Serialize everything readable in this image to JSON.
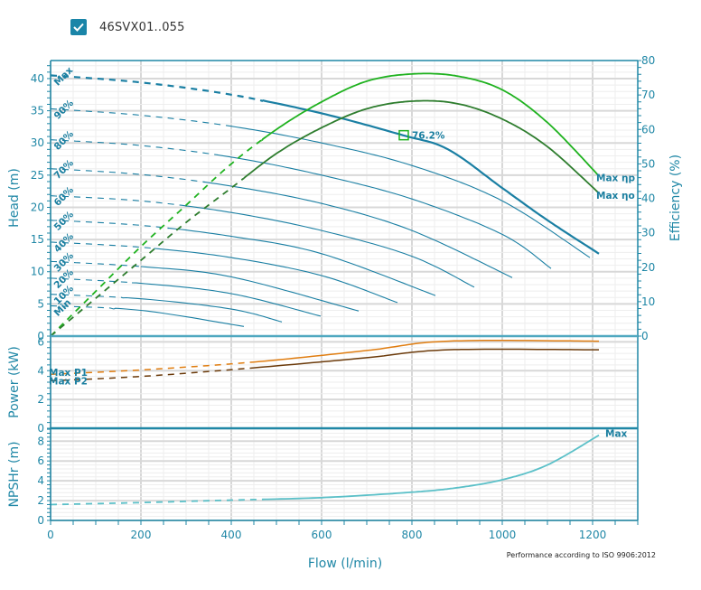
{
  "header": {
    "checkbox_checked": true,
    "model_name": "46SVX01..055"
  },
  "footnote": "Performance according to ISO 9906:2012",
  "colors": {
    "axis": "#1f87a6",
    "head": "#1a7fa3",
    "eta_p": "#1fb21f",
    "eta_o": "#2e7d2e",
    "p1": "#e07d10",
    "p2": "#6b3a0a",
    "npsh": "#5bc0c8",
    "grid_major": "#d8d8d8",
    "grid_minor": "#eeeeee"
  },
  "chart_data": [
    {
      "id": "head-efficiency",
      "type": "line",
      "xlabel": "Flow (l/min)",
      "ylabel": "Head (m)",
      "y2label": "Efficiency (%)",
      "xlim": [
        0,
        1300
      ],
      "ylim": [
        0,
        42.8
      ],
      "y2lim": [
        0,
        80
      ],
      "x_ticks": [
        0,
        200,
        400,
        600,
        800,
        1000,
        1200
      ],
      "y_ticks": [
        0,
        5,
        10,
        15,
        20,
        25,
        30,
        35,
        40
      ],
      "y2_ticks": [
        0,
        10,
        20,
        30,
        40,
        50,
        60,
        70,
        80
      ],
      "grid": true,
      "head_curves": [
        {
          "name": "Max",
          "label": "Max",
          "dashed_until": 470,
          "points": [
            [
              0,
              40.5
            ],
            [
              200,
              39.4
            ],
            [
              400,
              37.5
            ],
            [
              600,
              34.6
            ],
            [
              780,
              31.2
            ],
            [
              880,
              29.0
            ],
            [
              1000,
              23.0
            ],
            [
              1100,
              18.0
            ],
            [
              1214,
              12.8
            ]
          ],
          "bold": true
        },
        {
          "name": "90%",
          "label": "90%",
          "dashed_until": 400,
          "points": [
            [
              0,
              35.3
            ],
            [
              200,
              34.3
            ],
            [
              400,
              32.6
            ],
            [
              600,
              30.0
            ],
            [
              800,
              26.5
            ],
            [
              1000,
              21.0
            ],
            [
              1194,
              12.2
            ]
          ]
        },
        {
          "name": "80%",
          "label": "80%",
          "dashed_until": 370,
          "points": [
            [
              0,
              30.5
            ],
            [
              200,
              29.6
            ],
            [
              400,
              27.8
            ],
            [
              600,
              25.0
            ],
            [
              800,
              21.3
            ],
            [
              1000,
              15.8
            ],
            [
              1108,
              10.5
            ]
          ]
        },
        {
          "name": "70%",
          "label": "70%",
          "dashed_until": 340,
          "points": [
            [
              0,
              26.0
            ],
            [
              200,
              25.1
            ],
            [
              400,
              23.3
            ],
            [
              600,
              20.6
            ],
            [
              800,
              16.4
            ],
            [
              1022,
              9.1
            ]
          ]
        },
        {
          "name": "60%",
          "label": "60%",
          "dashed_until": 300,
          "points": [
            [
              0,
              21.8
            ],
            [
              200,
              21.0
            ],
            [
              400,
              19.2
            ],
            [
              600,
              16.4
            ],
            [
              800,
              12.4
            ],
            [
              938,
              7.6
            ]
          ]
        },
        {
          "name": "50%",
          "label": "50%",
          "dashed_until": 260,
          "points": [
            [
              0,
              18.0
            ],
            [
              200,
              17.2
            ],
            [
              400,
              15.5
            ],
            [
              600,
              12.8
            ],
            [
              852,
              6.3
            ]
          ]
        },
        {
          "name": "40%",
          "label": "40%",
          "dashed_until": 230,
          "points": [
            [
              0,
              14.6
            ],
            [
              200,
              13.8
            ],
            [
              400,
              12.2
            ],
            [
              600,
              9.4
            ],
            [
              768,
              5.2
            ]
          ]
        },
        {
          "name": "30%",
          "label": "30%",
          "dashed_until": 200,
          "points": [
            [
              0,
              11.6
            ],
            [
              200,
              10.8
            ],
            [
              400,
              9.2
            ],
            [
              682,
              3.9
            ]
          ]
        },
        {
          "name": "20%",
          "label": "20%",
          "dashed_until": 180,
          "points": [
            [
              0,
              9.0
            ],
            [
              200,
              8.2
            ],
            [
              400,
              6.6
            ],
            [
              598,
              3.1
            ]
          ]
        },
        {
          "name": "10%",
          "label": "10%",
          "dashed_until": 160,
          "points": [
            [
              0,
              6.5
            ],
            [
              200,
              5.8
            ],
            [
              400,
              4.2
            ],
            [
              512,
              2.2
            ]
          ]
        },
        {
          "name": "Min",
          "label": "Min",
          "dashed_until": 140,
          "points": [
            [
              0,
              4.7
            ],
            [
              200,
              4.0
            ],
            [
              428,
              1.5
            ]
          ]
        }
      ],
      "efficiency_curves": [
        {
          "name": "eta_p",
          "label": "Max  ηp",
          "dashed_until": 468,
          "points": [
            [
              0,
              0
            ],
            [
              100,
              13
            ],
            [
              200,
              26
            ],
            [
              300,
              38
            ],
            [
              400,
              50
            ],
            [
              500,
              60
            ],
            [
              600,
              68
            ],
            [
              700,
              74
            ],
            [
              800,
              76.1
            ],
            [
              900,
              75.5
            ],
            [
              1000,
              71.5
            ],
            [
              1100,
              62
            ],
            [
              1214,
              46.5
            ]
          ]
        },
        {
          "name": "eta_o",
          "label": "Max  ηo",
          "dashed_until": 428,
          "points": [
            [
              0,
              0
            ],
            [
              100,
              11
            ],
            [
              200,
              22
            ],
            [
              300,
              33
            ],
            [
              400,
              43
            ],
            [
              500,
              53
            ],
            [
              600,
              60.5
            ],
            [
              700,
              66
            ],
            [
              800,
              68.2
            ],
            [
              900,
              67.5
            ],
            [
              1000,
              63
            ],
            [
              1100,
              55
            ],
            [
              1214,
              41.5
            ]
          ]
        }
      ],
      "bep_marker": {
        "flow": 782,
        "head": 31.2,
        "label": "76.2%"
      }
    },
    {
      "id": "power",
      "type": "line",
      "ylabel": "Power (kW)",
      "xlim": [
        0,
        1300
      ],
      "ylim": [
        0,
        6.4
      ],
      "y_ticks": [
        0,
        2,
        4,
        6
      ],
      "grid": true,
      "series": [
        {
          "name": "P1",
          "label": "Max  P1",
          "dashed_until": 450,
          "points": [
            [
              0,
              3.75
            ],
            [
              200,
              4.05
            ],
            [
              450,
              4.6
            ],
            [
              700,
              5.4
            ],
            [
              880,
              6.05
            ],
            [
              1214,
              6.05
            ]
          ]
        },
        {
          "name": "P2",
          "label": "Max  P2",
          "dashed_until": 450,
          "points": [
            [
              0,
              3.3
            ],
            [
              200,
              3.6
            ],
            [
              450,
              4.2
            ],
            [
              700,
              4.9
            ],
            [
              880,
              5.45
            ],
            [
              1214,
              5.45
            ]
          ]
        }
      ]
    },
    {
      "id": "npsh",
      "type": "line",
      "ylabel": "NPSHr (m)",
      "xlim": [
        0,
        1300
      ],
      "ylim": [
        0,
        9.3
      ],
      "y_ticks": [
        0,
        2,
        4,
        6,
        8
      ],
      "grid": true,
      "series": [
        {
          "name": "NPSH",
          "label": "Max",
          "dashed_until": 470,
          "points": [
            [
              0,
              1.6
            ],
            [
              200,
              1.8
            ],
            [
              400,
              2.05
            ],
            [
              600,
              2.3
            ],
            [
              800,
              2.85
            ],
            [
              900,
              3.3
            ],
            [
              1000,
              4.1
            ],
            [
              1100,
              5.6
            ],
            [
              1214,
              8.6
            ]
          ]
        }
      ]
    }
  ]
}
